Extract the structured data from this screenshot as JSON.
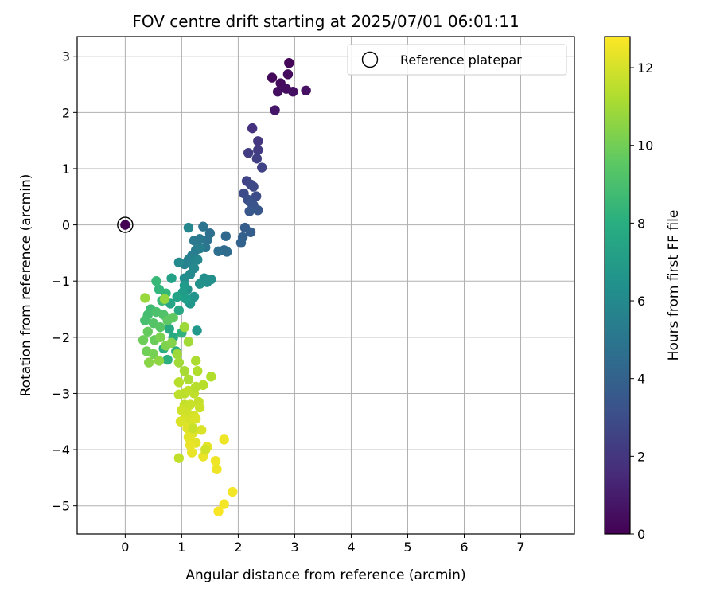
{
  "chart_data": {
    "type": "scatter",
    "title": "FOV centre drift starting at 2025/07/01 06:01:11",
    "xlabel": "Angular distance from reference (arcmin)",
    "ylabel": "Rotation from reference (arcmin)",
    "xlim": [
      -0.85,
      7.95
    ],
    "ylim": [
      -5.5,
      3.35
    ],
    "xticks": [
      0,
      1,
      2,
      3,
      4,
      5,
      6,
      7
    ],
    "yticks": [
      -5,
      -4,
      -3,
      -2,
      -1,
      0,
      1,
      2,
      3
    ],
    "xtick_labels": [
      "0",
      "1",
      "2",
      "3",
      "4",
      "5",
      "6",
      "7"
    ],
    "ytick_labels": [
      "−5",
      "−4",
      "−3",
      "−2",
      "−1",
      "0",
      "1",
      "2",
      "3"
    ],
    "grid": true,
    "legend": {
      "placement": "top-right",
      "entries": [
        {
          "label": "Reference platepar",
          "marker": "open-circle"
        }
      ]
    },
    "colorbar": {
      "label": "Hours from first FF file",
      "colormap": "viridis",
      "range": [
        0,
        12.8
      ],
      "ticks": [
        0,
        2,
        4,
        6,
        8,
        10,
        12
      ],
      "tick_labels": [
        "0",
        "2",
        "4",
        "6",
        "8",
        "10",
        "12"
      ]
    },
    "reference_point": {
      "x": 0,
      "y": 0,
      "hours": 0
    },
    "points": [
      [
        2.9,
        2.88,
        0.15
      ],
      [
        2.6,
        2.62,
        0.3
      ],
      [
        2.75,
        2.52,
        0.35
      ],
      [
        2.88,
        2.68,
        0.4
      ],
      [
        2.85,
        2.42,
        0.45
      ],
      [
        2.7,
        2.37,
        0.5
      ],
      [
        2.97,
        2.37,
        0.55
      ],
      [
        3.2,
        2.39,
        0.6
      ],
      [
        2.65,
        2.04,
        0.8
      ],
      [
        2.25,
        1.72,
        1.8
      ],
      [
        2.35,
        1.49,
        2.0
      ],
      [
        2.35,
        1.33,
        2.2
      ],
      [
        2.18,
        1.28,
        2.3
      ],
      [
        2.33,
        1.18,
        2.4
      ],
      [
        2.42,
        1.02,
        2.5
      ],
      [
        2.15,
        0.78,
        2.6
      ],
      [
        2.22,
        0.72,
        2.7
      ],
      [
        2.27,
        0.68,
        2.8
      ],
      [
        2.1,
        0.56,
        2.9
      ],
      [
        2.32,
        0.51,
        3.0
      ],
      [
        2.17,
        0.45,
        3.1
      ],
      [
        2.22,
        0.4,
        3.2
      ],
      [
        2.27,
        0.35,
        3.3
      ],
      [
        2.35,
        0.26,
        3.4
      ],
      [
        2.2,
        0.24,
        3.5
      ],
      [
        2.12,
        -0.05,
        3.7
      ],
      [
        2.22,
        -0.13,
        3.8
      ],
      [
        2.08,
        -0.22,
        3.9
      ],
      [
        2.05,
        -0.32,
        4.0
      ],
      [
        1.78,
        -0.2,
        4.3
      ],
      [
        1.75,
        -0.45,
        4.4
      ],
      [
        1.8,
        -0.48,
        4.5
      ],
      [
        1.65,
        -0.47,
        4.6
      ],
      [
        1.5,
        -0.15,
        4.7
      ],
      [
        1.45,
        -0.27,
        4.8
      ],
      [
        1.38,
        -0.03,
        4.9
      ],
      [
        1.42,
        -0.4,
        5.0
      ],
      [
        1.32,
        -0.25,
        5.1
      ],
      [
        1.22,
        -0.28,
        5.2
      ],
      [
        1.25,
        -0.45,
        5.3
      ],
      [
        1.18,
        -0.55,
        5.4
      ],
      [
        1.32,
        -0.42,
        5.5
      ],
      [
        1.12,
        -0.62,
        5.6
      ],
      [
        1.05,
        -0.7,
        5.7
      ],
      [
        1.18,
        -0.7,
        5.8
      ],
      [
        1.12,
        -0.05,
        5.9
      ],
      [
        1.28,
        -0.62,
        5.9
      ],
      [
        1.22,
        -0.77,
        6.0
      ],
      [
        0.95,
        -0.67,
        6.1
      ],
      [
        1.15,
        -0.88,
        6.1
      ],
      [
        1.05,
        -0.95,
        6.2
      ],
      [
        1.4,
        -0.95,
        6.3
      ],
      [
        1.52,
        -0.97,
        6.4
      ],
      [
        1.45,
        -1.02,
        6.4
      ],
      [
        1.32,
        -1.05,
        6.5
      ],
      [
        1.1,
        -1.15,
        6.5
      ],
      [
        1.22,
        -1.28,
        6.6
      ],
      [
        1.15,
        -1.4,
        6.7
      ],
      [
        1.27,
        -1.88,
        6.8
      ],
      [
        1.05,
        -1.08,
        6.9
      ],
      [
        1.02,
        -1.2,
        7.0
      ],
      [
        1.08,
        -1.32,
        7.1
      ],
      [
        0.82,
        -0.95,
        7.3
      ],
      [
        0.92,
        -1.28,
        7.4
      ],
      [
        0.8,
        -1.4,
        7.5
      ],
      [
        0.95,
        -1.52,
        7.6
      ],
      [
        0.78,
        -1.85,
        7.7
      ],
      [
        0.85,
        -2.0,
        7.8
      ],
      [
        0.68,
        -2.2,
        7.9
      ],
      [
        0.75,
        -2.4,
        8.0
      ],
      [
        0.9,
        -2.25,
        8.1
      ],
      [
        1.0,
        -1.92,
        8.2
      ],
      [
        0.6,
        -1.15,
        8.4
      ],
      [
        0.72,
        -1.22,
        8.5
      ],
      [
        0.55,
        -1.0,
        8.6
      ],
      [
        0.65,
        -1.35,
        8.7
      ],
      [
        0.45,
        -1.5,
        8.8
      ],
      [
        0.4,
        -1.6,
        8.9
      ],
      [
        0.35,
        -1.7,
        9.0
      ],
      [
        0.55,
        -1.55,
        9.1
      ],
      [
        0.68,
        -1.6,
        9.2
      ],
      [
        0.5,
        -1.75,
        9.3
      ],
      [
        0.62,
        -1.82,
        9.4
      ],
      [
        0.75,
        -1.7,
        9.5
      ],
      [
        0.85,
        -1.65,
        9.6
      ],
      [
        0.4,
        -1.9,
        9.7
      ],
      [
        0.52,
        -2.05,
        9.8
      ],
      [
        0.32,
        -2.05,
        9.9
      ],
      [
        0.38,
        -2.25,
        10.0
      ],
      [
        0.5,
        -2.3,
        10.1
      ],
      [
        0.62,
        -2.0,
        10.2
      ],
      [
        0.72,
        -2.15,
        10.3
      ],
      [
        0.82,
        -2.1,
        10.4
      ],
      [
        0.42,
        -2.45,
        10.5
      ],
      [
        0.6,
        -2.42,
        10.6
      ],
      [
        0.7,
        -1.32,
        10.7
      ],
      [
        0.35,
        -1.3,
        10.8
      ],
      [
        0.92,
        -2.3,
        10.9
      ],
      [
        1.12,
        -2.08,
        11.0
      ],
      [
        1.05,
        -1.82,
        10.9
      ],
      [
        0.95,
        -2.45,
        11.0
      ],
      [
        1.05,
        -2.6,
        11.1
      ],
      [
        1.12,
        -2.75,
        11.2
      ],
      [
        1.25,
        -2.42,
        11.2
      ],
      [
        1.28,
        -2.6,
        11.3
      ],
      [
        1.52,
        -2.7,
        11.3
      ],
      [
        0.95,
        -2.8,
        11.4
      ],
      [
        1.38,
        -2.85,
        11.4
      ],
      [
        1.05,
        -3.0,
        11.5
      ],
      [
        0.95,
        -3.02,
        11.5
      ],
      [
        1.12,
        -2.95,
        11.6
      ],
      [
        1.22,
        -3.0,
        11.6
      ],
      [
        1.3,
        -3.15,
        11.7
      ],
      [
        1.05,
        -3.2,
        11.7
      ],
      [
        1.15,
        -3.2,
        11.8
      ],
      [
        1.32,
        -3.25,
        11.8
      ],
      [
        1.0,
        -3.3,
        11.9
      ],
      [
        1.1,
        -3.35,
        11.9
      ],
      [
        1.22,
        -3.4,
        12.0
      ],
      [
        1.05,
        -3.45,
        12.0
      ],
      [
        1.15,
        -3.5,
        12.0
      ],
      [
        0.98,
        -3.5,
        12.1
      ],
      [
        1.25,
        -3.45,
        12.1
      ],
      [
        1.35,
        -3.65,
        12.1
      ],
      [
        1.1,
        -3.62,
        12.2
      ],
      [
        1.2,
        -3.7,
        12.2
      ],
      [
        1.12,
        -3.78,
        12.3
      ],
      [
        1.25,
        -3.88,
        12.3
      ],
      [
        1.45,
        -3.95,
        12.3
      ],
      [
        1.15,
        -3.92,
        12.4
      ],
      [
        1.38,
        -4.12,
        12.4
      ],
      [
        1.18,
        -4.05,
        12.4
      ],
      [
        1.6,
        -4.2,
        12.5
      ],
      [
        1.62,
        -4.35,
        12.5
      ],
      [
        0.95,
        -4.15,
        11.6
      ],
      [
        1.75,
        -3.82,
        12.5
      ],
      [
        1.9,
        -4.75,
        12.6
      ],
      [
        1.75,
        -4.97,
        12.6
      ],
      [
        1.65,
        -5.1,
        12.7
      ],
      [
        1.42,
        -4.0,
        11.9
      ],
      [
        1.2,
        -3.62,
        11.8
      ],
      [
        1.25,
        -2.88,
        11.4
      ]
    ]
  }
}
